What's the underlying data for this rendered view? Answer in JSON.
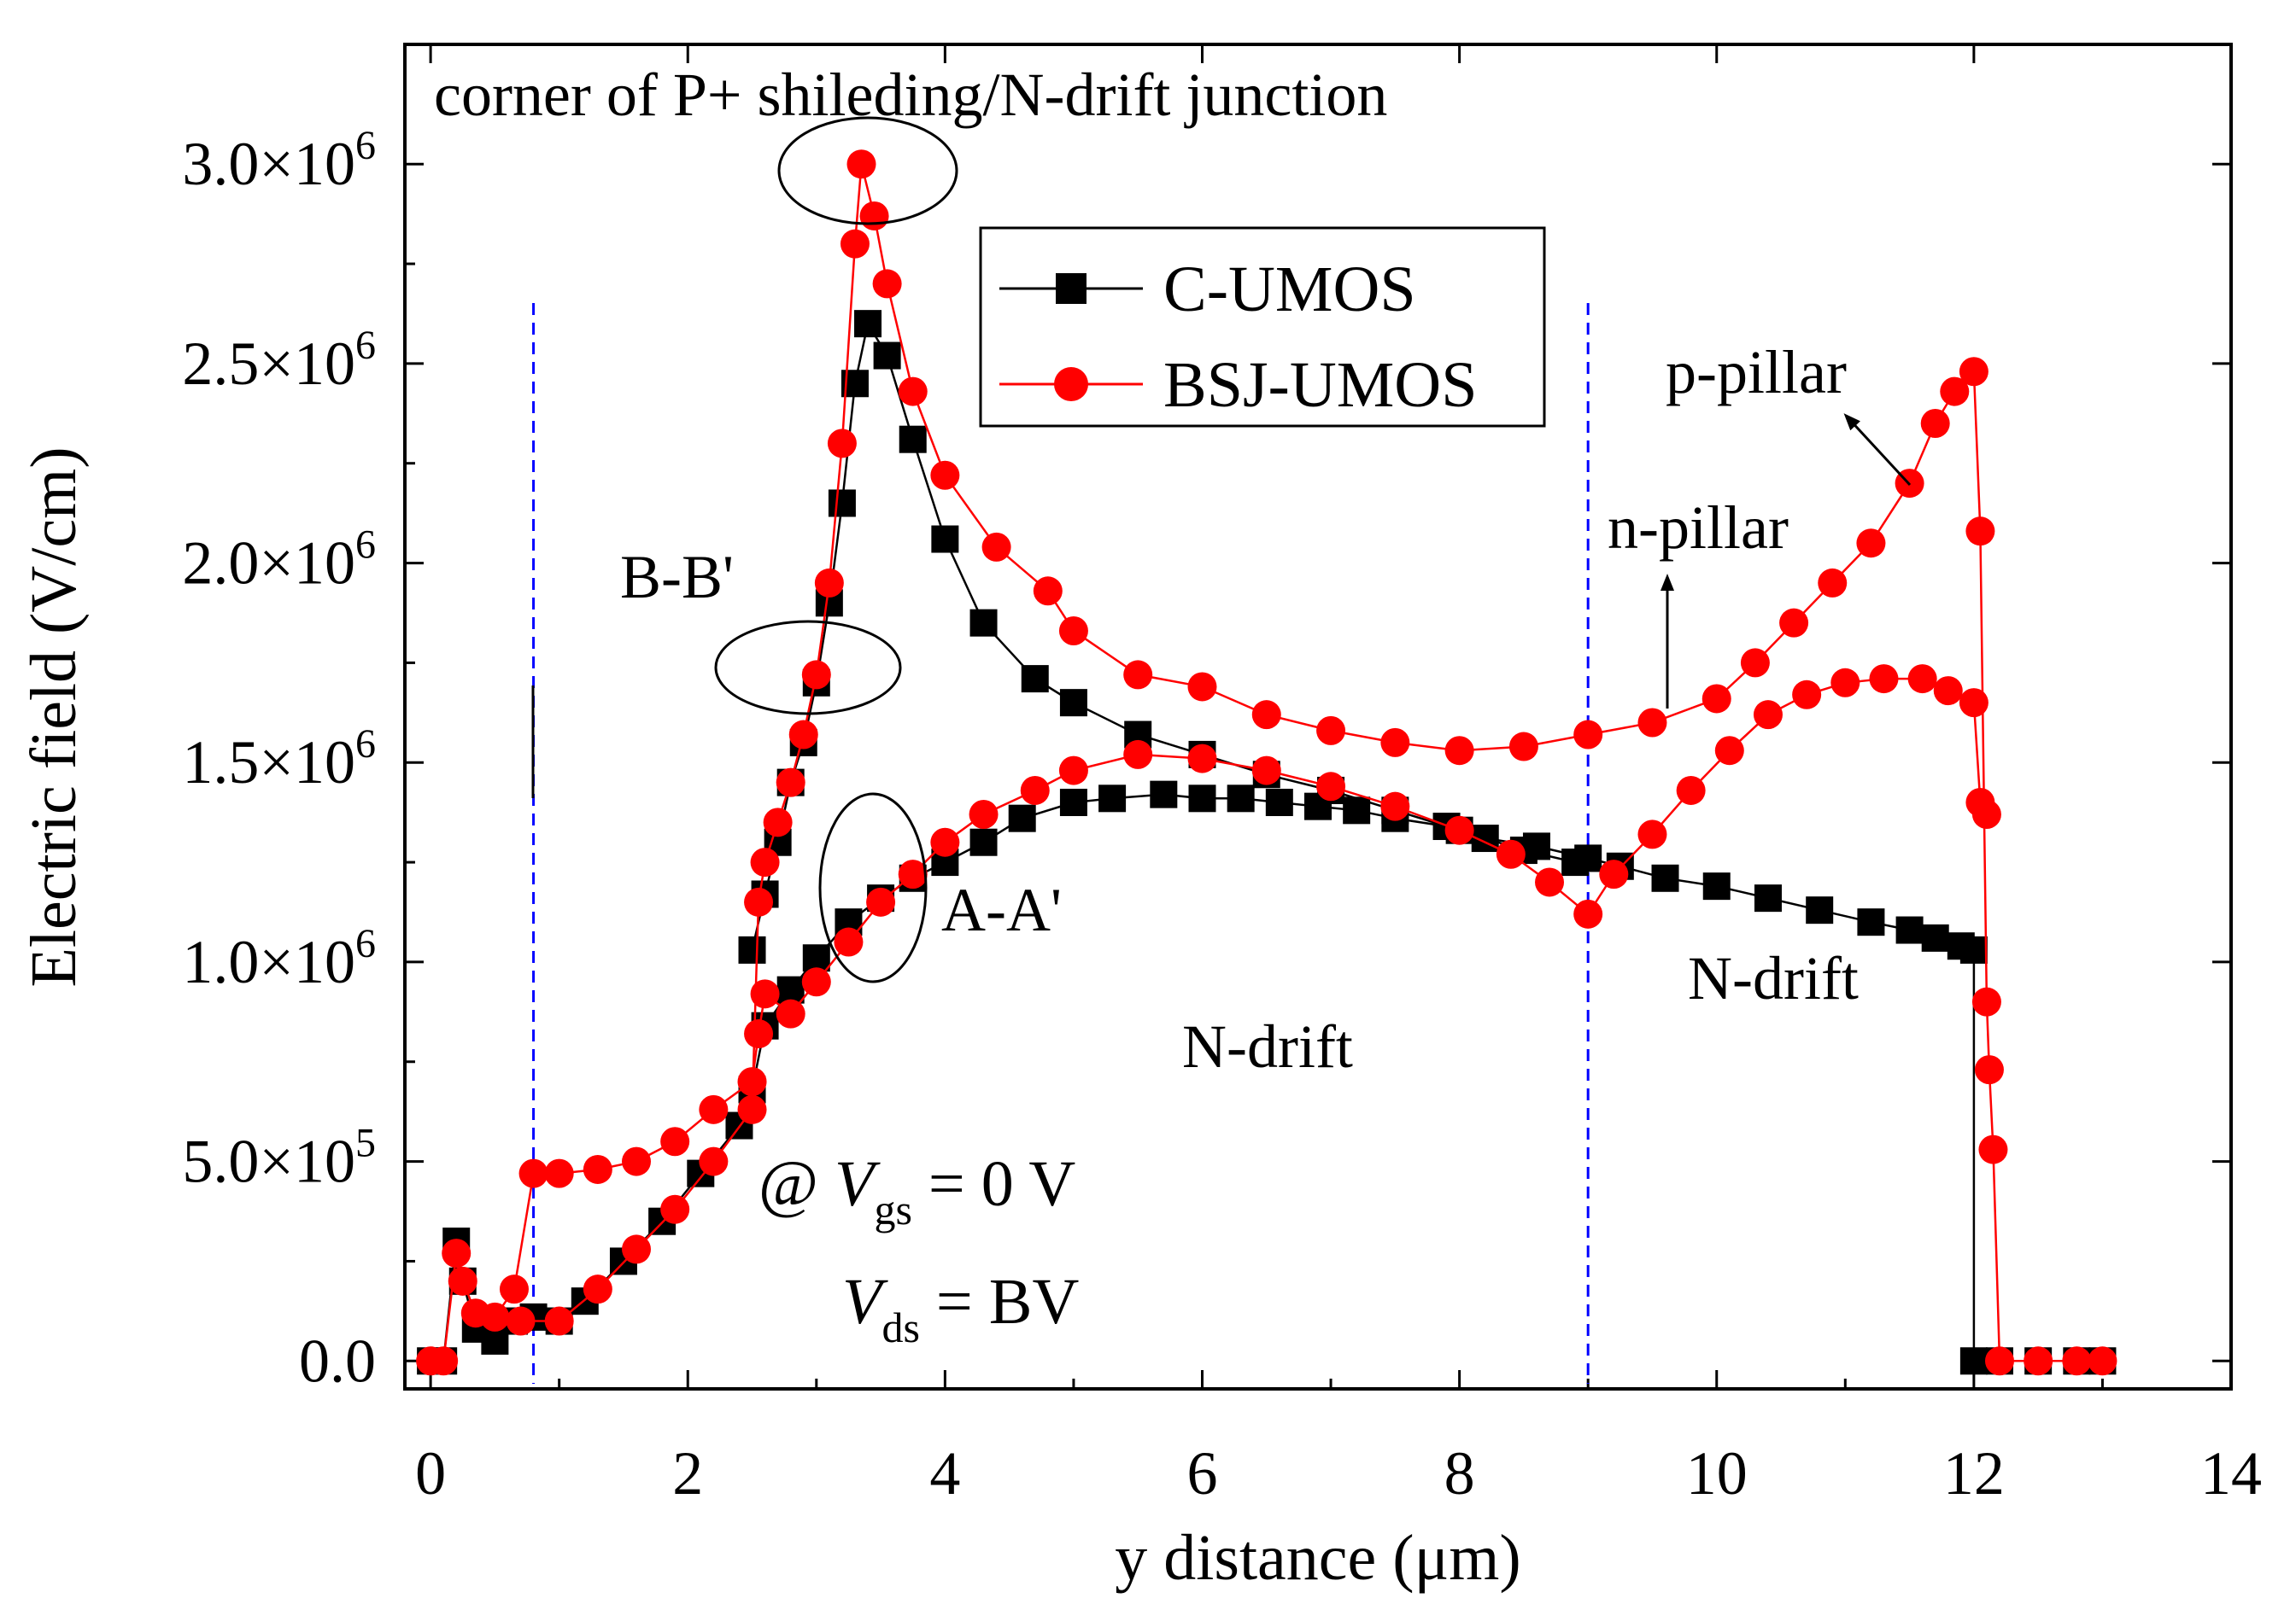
{
  "chart_data": {
    "type": "line",
    "title": "corner of P+ shileding/N-drift junction",
    "xlabel": "y distance (μm)",
    "ylabel": "Electric field (V/cm)",
    "xlim": [
      -0.2,
      14
    ],
    "ylim": [
      -70000.0,
      3300000.0
    ],
    "xticks": [
      0,
      2,
      4,
      6,
      8,
      10,
      12,
      14
    ],
    "xtick_labels": [
      "0",
      "2",
      "4",
      "6",
      "8",
      "10",
      "12",
      "14"
    ],
    "yticks": [
      0,
      500000,
      1000000,
      1500000,
      2000000,
      2500000,
      3000000
    ],
    "ytick_labels": [
      {
        "mantissa": "0.0",
        "exp": ""
      },
      {
        "mantissa": "5.0×10",
        "exp": "5"
      },
      {
        "mantissa": "1.0×10",
        "exp": "6"
      },
      {
        "mantissa": "1.5×10",
        "exp": "6"
      },
      {
        "mantissa": "2.0×10",
        "exp": "6"
      },
      {
        "mantissa": "2.5×10",
        "exp": "6"
      },
      {
        "mantissa": "3.0×10",
        "exp": "6"
      }
    ],
    "legend_position": "top-center",
    "colors": {
      "c_umos": "#000000",
      "bsj_umos": "#ff0000",
      "guide": "#0000ff"
    },
    "series": [
      {
        "name": "C-UMOS",
        "marker": "square",
        "color": "#000000",
        "curves": [
          [
            [
              0,
              0
            ],
            [
              0.1,
              0
            ],
            [
              0.2,
              300000.0
            ],
            [
              0.25,
              200000.0
            ],
            [
              0.35,
              80000.0
            ],
            [
              0.5,
              50000.0
            ],
            [
              0.65,
              100000.0
            ],
            [
              0.8,
              110000.0
            ],
            [
              1.0,
              100000.0
            ],
            [
              1.2,
              150000.0
            ],
            [
              1.5,
              250000.0
            ],
            [
              1.8,
              350000.0
            ],
            [
              2.1,
              470000.0
            ],
            [
              2.4,
              590000.0
            ],
            [
              2.5,
              680000.0
            ],
            [
              2.6,
              840000.0
            ],
            [
              2.8,
              930000.0
            ],
            [
              3.0,
              1010000.0
            ],
            [
              3.25,
              1100000.0
            ],
            [
              3.5,
              1160000.0
            ],
            [
              3.75,
              1210000.0
            ],
            [
              4.0,
              1250000.0
            ],
            [
              4.3,
              1300000.0
            ],
            [
              4.6,
              1360000.0
            ],
            [
              5.0,
              1400000.0
            ],
            [
              5.3,
              1410000.0
            ],
            [
              5.7,
              1420000.0
            ],
            [
              6.0,
              1410000.0
            ],
            [
              6.3,
              1410000.0
            ],
            [
              6.6,
              1400000.0
            ],
            [
              6.9,
              1390000.0
            ],
            [
              7.2,
              1380000.0
            ],
            [
              7.5,
              1360000.0
            ],
            [
              7.9,
              1340000.0
            ],
            [
              8.2,
              1310000.0
            ],
            [
              8.6,
              1290000.0
            ],
            [
              9.0,
              1260000.0
            ],
            [
              9.25,
              1240000.0
            ],
            [
              9.6,
              1210000.0
            ],
            [
              10.0,
              1190000.0
            ],
            [
              10.4,
              1160000.0
            ],
            [
              10.8,
              1130000.0
            ],
            [
              11.2,
              1100000.0
            ],
            [
              11.5,
              1080000.0
            ],
            [
              11.7,
              1060000.0
            ],
            [
              11.9,
              1040000.0
            ],
            [
              12.0,
              1030000.0
            ],
            [
              12.0,
              0
            ],
            [
              12.2,
              0
            ],
            [
              12.5,
              0
            ],
            [
              12.8,
              0
            ],
            [
              13.0,
              0
            ]
          ],
          [
            [
              2.5,
              1030000.0
            ],
            [
              2.6,
              1170000.0
            ],
            [
              2.7,
              1300000.0
            ],
            [
              2.8,
              1450000.0
            ],
            [
              2.9,
              1550000.0
            ],
            [
              3.0,
              1700000.0
            ],
            [
              3.1,
              1900000.0
            ],
            [
              3.2,
              2150000.0
            ],
            [
              3.3,
              2450000.0
            ],
            [
              3.4,
              2600000.0
            ],
            [
              3.55,
              2520000.0
            ],
            [
              3.75,
              2310000.0
            ],
            [
              4.0,
              2060000.0
            ],
            [
              4.3,
              1850000.0
            ],
            [
              4.7,
              1710000.0
            ],
            [
              5.0,
              1650000.0
            ],
            [
              5.5,
              1570000.0
            ],
            [
              6.0,
              1520000.0
            ],
            [
              6.5,
              1470000.0
            ],
            [
              7.0,
              1430000.0
            ],
            [
              7.5,
              1380000.0
            ],
            [
              8.0,
              1330000.0
            ],
            [
              8.5,
              1280000.0
            ],
            [
              8.9,
              1250000.0
            ]
          ]
        ]
      },
      {
        "name": "BSJ-UMOS",
        "marker": "circle",
        "color": "#ff0000",
        "curves": [
          [
            [
              0,
              0
            ],
            [
              0.1,
              0
            ],
            [
              0.2,
              270000.0
            ],
            [
              0.25,
              200000.0
            ],
            [
              0.35,
              120000.0
            ],
            [
              0.5,
              110000.0
            ],
            [
              0.65,
              180000.0
            ],
            [
              0.8,
              470000.0
            ],
            [
              1.0,
              470000.0
            ],
            [
              1.3,
              480000.0
            ],
            [
              1.6,
              500000.0
            ],
            [
              1.9,
              550000.0
            ],
            [
              2.2,
              630000.0
            ],
            [
              2.5,
              700000.0
            ],
            [
              2.55,
              820000.0
            ],
            [
              2.6,
              920000.0
            ],
            [
              2.8,
              870000.0
            ],
            [
              3.0,
              950000.0
            ],
            [
              3.25,
              1050000.0
            ],
            [
              3.5,
              1150000.0
            ],
            [
              3.75,
              1220000.0
            ],
            [
              4.0,
              1300000.0
            ],
            [
              4.3,
              1370000.0
            ],
            [
              4.7,
              1430000.0
            ],
            [
              5.0,
              1480000.0
            ],
            [
              5.5,
              1520000.0
            ],
            [
              6.0,
              1510000.0
            ],
            [
              6.5,
              1480000.0
            ],
            [
              7.0,
              1440000.0
            ],
            [
              7.5,
              1390000.0
            ],
            [
              8.0,
              1330000.0
            ],
            [
              8.4,
              1270000.0
            ],
            [
              8.7,
              1200000.0
            ],
            [
              9.0,
              1120000.0
            ],
            [
              9.2,
              1220000.0
            ],
            [
              9.5,
              1320000.0
            ],
            [
              9.8,
              1430000.0
            ],
            [
              10.1,
              1530000.0
            ],
            [
              10.4,
              1620000.0
            ],
            [
              10.7,
              1670000.0
            ],
            [
              11.0,
              1700000.0
            ],
            [
              11.3,
              1710000.0
            ],
            [
              11.6,
              1710000.0
            ],
            [
              11.8,
              1680000.0
            ],
            [
              12.0,
              1650000.0
            ],
            [
              12.05,
              1400000.0
            ],
            [
              12.1,
              1370000.0
            ]
          ],
          [
            [
              0.7,
              100000.0
            ],
            [
              1.0,
              100000.0
            ],
            [
              1.3,
              180000.0
            ],
            [
              1.6,
              280000.0
            ],
            [
              1.9,
              380000.0
            ],
            [
              2.2,
              500000.0
            ],
            [
              2.5,
              630000.0
            ],
            [
              2.55,
              1150000.0
            ],
            [
              2.6,
              1250000.0
            ],
            [
              2.7,
              1350000.0
            ],
            [
              2.8,
              1450000.0
            ],
            [
              2.9,
              1570000.0
            ],
            [
              3.0,
              1720000.0
            ],
            [
              3.1,
              1950000.0
            ],
            [
              3.2,
              2300000.0
            ],
            [
              3.3,
              2800000.0
            ],
            [
              3.35,
              3000000.0
            ],
            [
              3.45,
              2870000.0
            ],
            [
              3.55,
              2700000.0
            ],
            [
              3.75,
              2430000.0
            ],
            [
              4.0,
              2220000.0
            ],
            [
              4.4,
              2040000.0
            ],
            [
              4.8,
              1930000.0
            ],
            [
              5.0,
              1830000.0
            ],
            [
              5.5,
              1720000.0
            ],
            [
              6.0,
              1690000.0
            ],
            [
              6.5,
              1620000.0
            ],
            [
              7.0,
              1580000.0
            ],
            [
              7.5,
              1550000.0
            ],
            [
              8.0,
              1530000.0
            ],
            [
              8.5,
              1540000.0
            ],
            [
              9.0,
              1570000.0
            ],
            [
              9.5,
              1600000.0
            ],
            [
              10.0,
              1660000.0
            ],
            [
              10.3,
              1750000.0
            ],
            [
              10.6,
              1850000.0
            ],
            [
              10.9,
              1950000.0
            ],
            [
              11.2,
              2050000.0
            ],
            [
              11.5,
              2200000.0
            ],
            [
              11.7,
              2350000.0
            ],
            [
              11.85,
              2430000.0
            ],
            [
              12.0,
              2480000.0
            ],
            [
              12.05,
              2080000.0
            ],
            [
              12.1,
              900000.0
            ],
            [
              12.12,
              730000.0
            ],
            [
              12.15,
              530000.0
            ],
            [
              12.2,
              0
            ],
            [
              12.5,
              0
            ],
            [
              12.8,
              0
            ],
            [
              13.0,
              0
            ]
          ]
        ]
      }
    ],
    "guides": [
      0.8,
      9.0
    ],
    "annotations": {
      "b_b_prime": "B-B'",
      "a_a_prime": "A-A'",
      "n_drift_center": "N-drift",
      "n_drift_right": "N-drift",
      "p_pillar": "p-pillar",
      "n_pillar": "n-pillar",
      "condition_at": "@ ",
      "condition_vgs_v": "V",
      "condition_vgs_sub": "gs",
      "condition_vgs_val": " = 0 V",
      "condition_vds_v": "V",
      "condition_vds_sub": "ds",
      "condition_vds_val": " = BV"
    }
  }
}
